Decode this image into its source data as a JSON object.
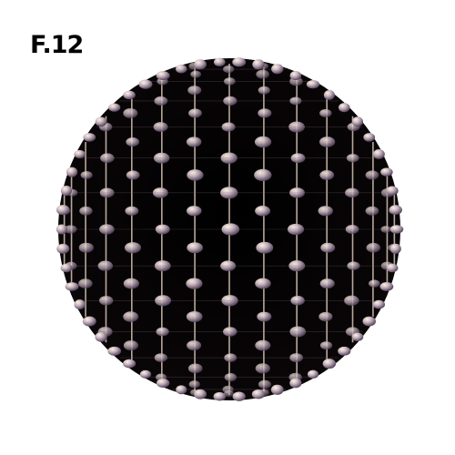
{
  "figure": {
    "label": "F.12"
  },
  "sphere": {
    "description_icon": "molecular-sphere-icon",
    "colors": {
      "core": "#000000",
      "rod_light": "#e8d9c4",
      "rod_dark": "#6a5a6e",
      "node_highlight": "#fbf3dc",
      "node_mid": "#b9a7b8",
      "node_shadow": "#4a3b52"
    }
  }
}
